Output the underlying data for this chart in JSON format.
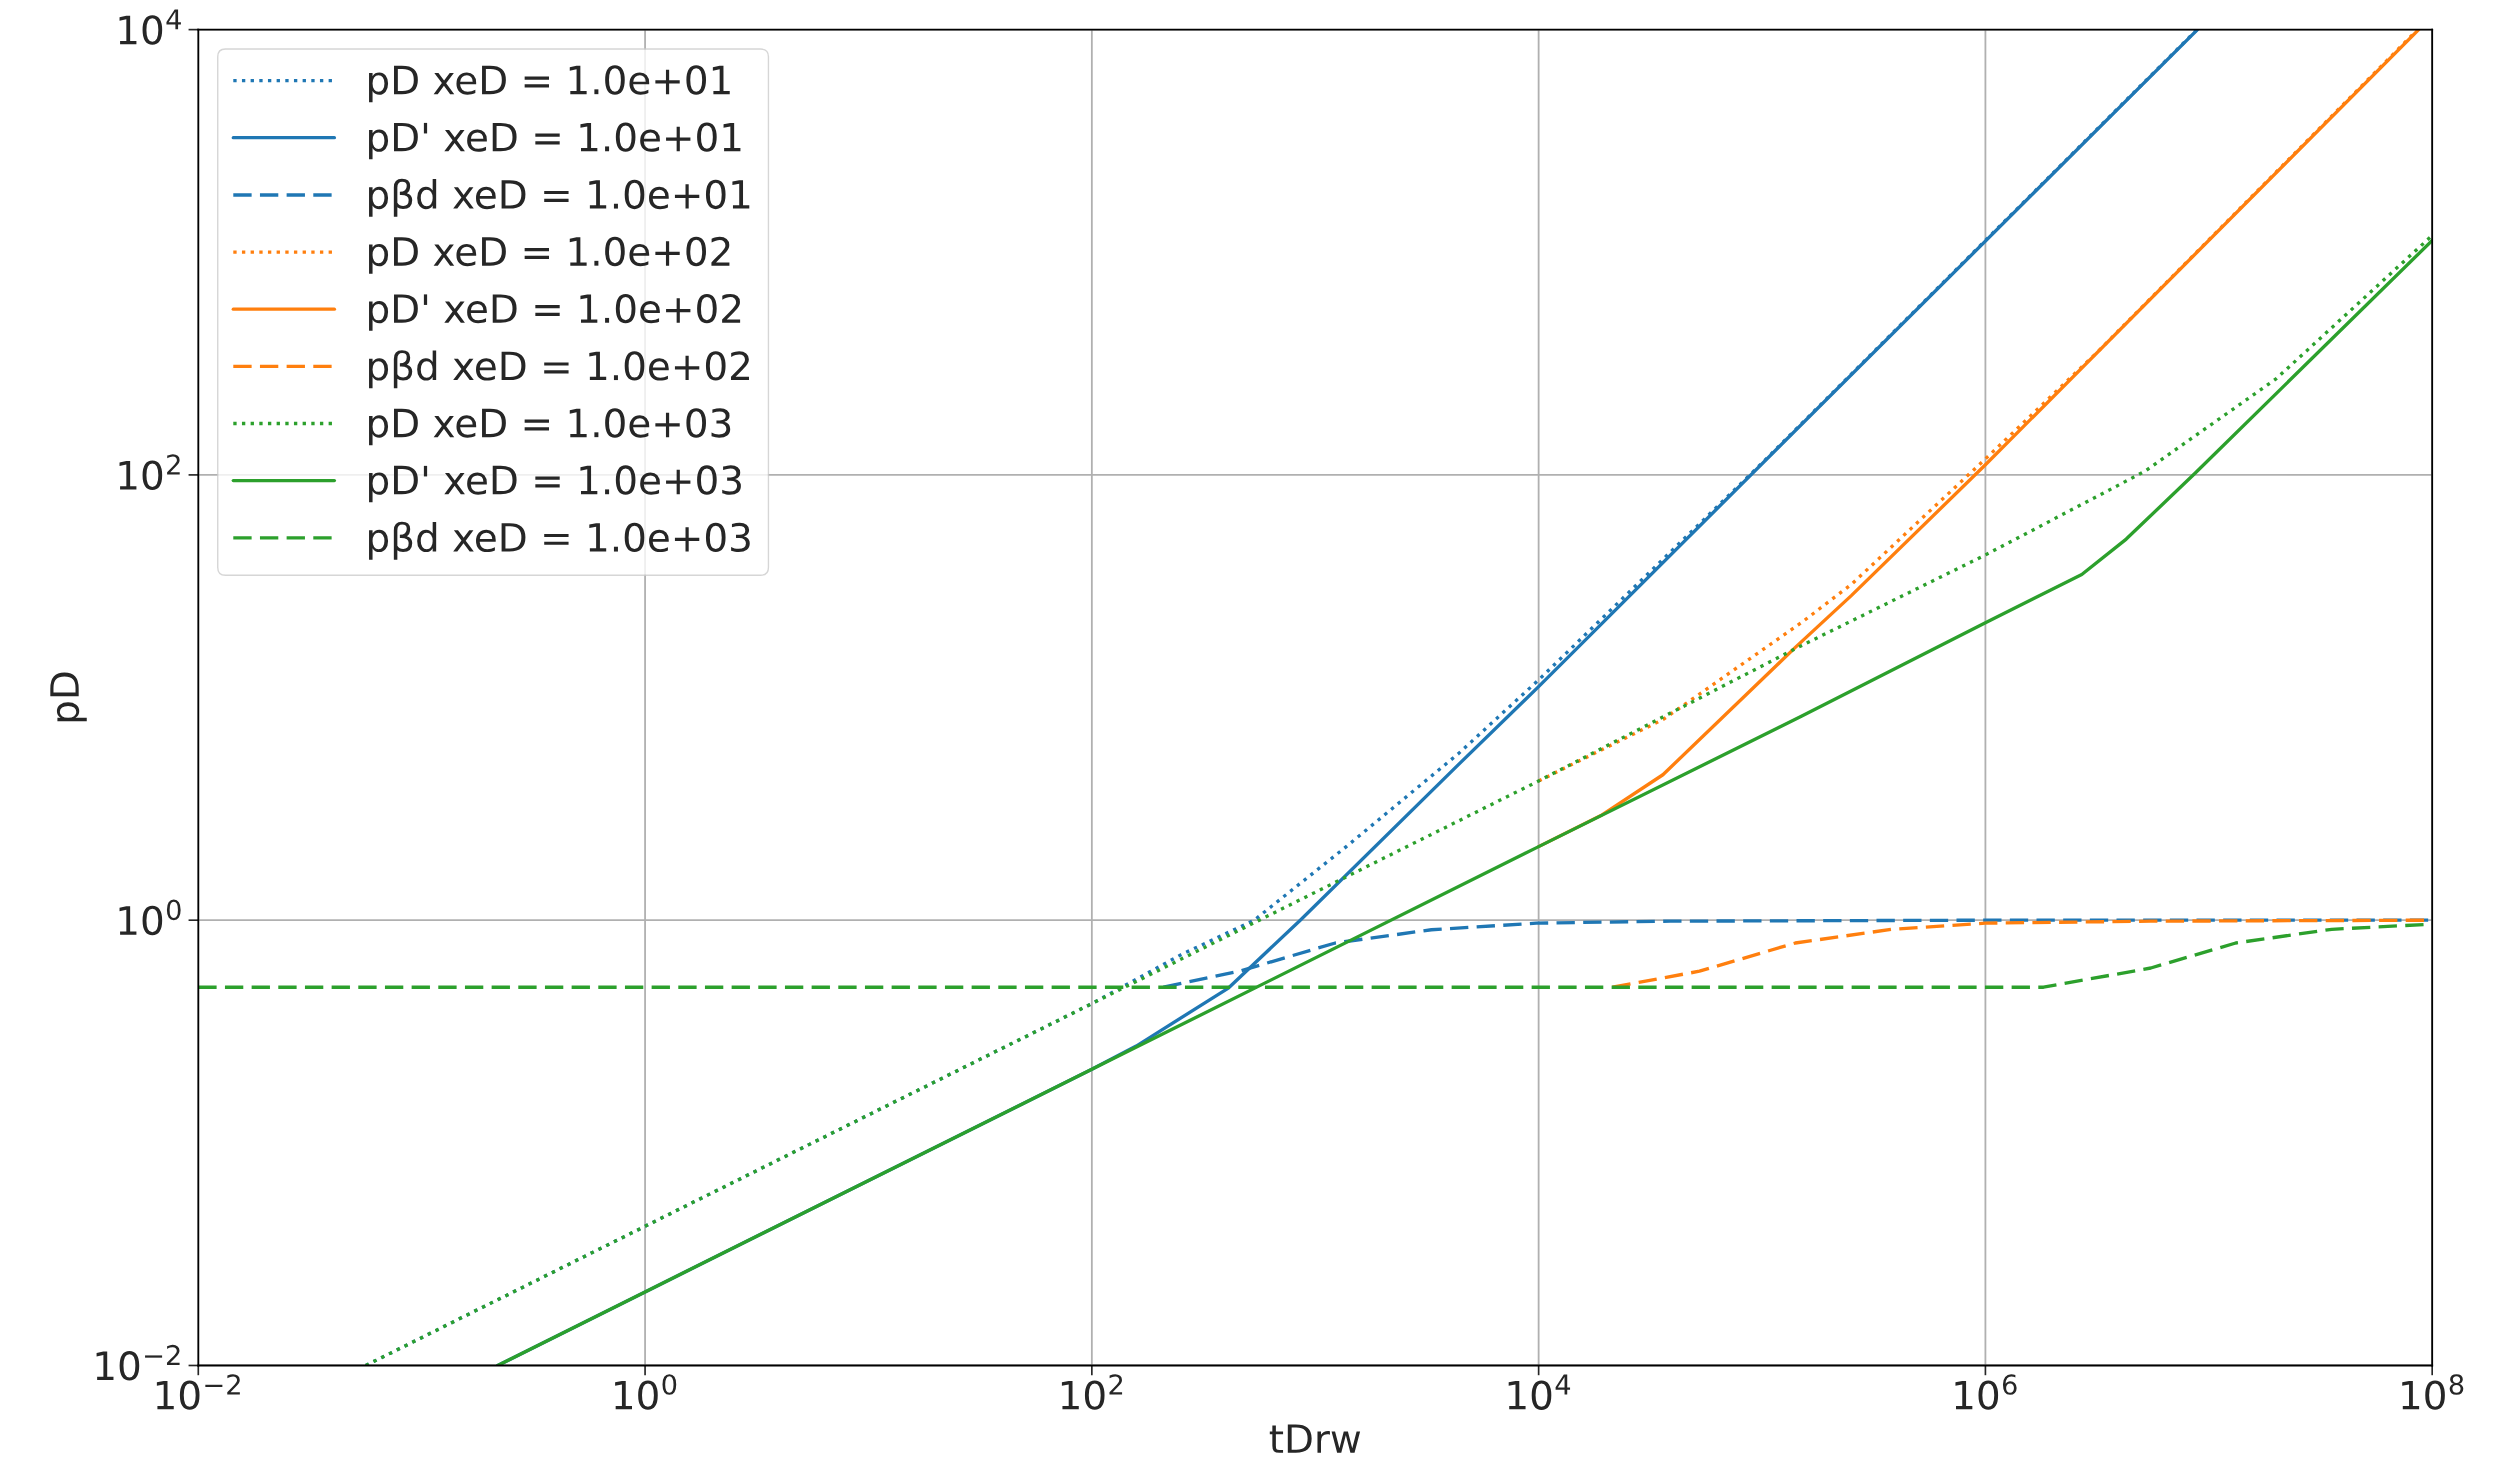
{
  "chart_data": {
    "type": "line",
    "xlabel": "tDrw",
    "ylabel": "pD",
    "log": "xy",
    "grid": true,
    "legend": "top left",
    "xlim": [
      0.01,
      100000000
    ],
    "ylim": [
      0.01,
      10000
    ],
    "xticks": [
      {
        "value": 0.01,
        "label": "10$^{−2}$"
      },
      {
        "value": 1,
        "label": "10$^{0}$"
      },
      {
        "value": 100,
        "label": "10$^{2}$"
      },
      {
        "value": 10000,
        "label": "10$^{4}$"
      },
      {
        "value": 1000000,
        "label": "10$^{6}$"
      },
      {
        "value": 100000000,
        "label": "10$^{8}$"
      }
    ],
    "yticks": [
      {
        "value": 0.01,
        "label": "10$^{−2}$"
      },
      {
        "value": 1,
        "label": "10$^{0}$"
      },
      {
        "value": 100,
        "label": "10$^{2}$"
      },
      {
        "value": 10000,
        "label": "10$^{4}$"
      }
    ],
    "series": [
      {
        "name": "pD xeD = 1.0e+01",
        "color": "#1f77b4",
        "line_style": "dotted",
        "x": [
          0.0562,
          1,
          100,
          251,
          533,
          1377,
          4375,
          10000,
          100000,
          8850000
        ],
        "values": [
          0.01,
          0.0422,
          0.422,
          0.7,
          1.0,
          2.14,
          5.6,
          12,
          113,
          10000
        ]
      },
      {
        "name": "pD' xeD = 1.0e+01",
        "color": "#1f77b4",
        "line_style": "solid",
        "x": [
          0.219,
          1,
          100,
          158,
          410,
          857,
          4375,
          10000,
          8900000
        ],
        "values": [
          0.01,
          0.0214,
          0.214,
          0.272,
          0.497,
          1.0,
          5.0,
          11.2,
          10000
        ]
      },
      {
        "name": "pβd xeD = 1.0e+01",
        "color": "#1f77b4",
        "line_style": "dashed",
        "x": [
          209,
          457,
          1230,
          3311,
          9772,
          38900,
          1000000,
          100000000
        ],
        "values": [
          0.5,
          0.59,
          0.79,
          0.906,
          0.97,
          0.99,
          1.0,
          1.0
        ]
      },
      {
        "name": "pD xeD = 1.0e+02",
        "color": "#ff7f0e",
        "line_style": "dotted",
        "x": [
          10000,
          36300,
          150000,
          251000,
          1000000,
          3160000,
          86000000
        ],
        "values": [
          4.22,
          8.0,
          21.7,
          32.2,
          118,
          355,
          10000
        ]
      },
      {
        "name": "pD' xeD = 1.0e+02",
        "color": "#ff7f0e",
        "line_style": "solid",
        "x": [
          10000,
          19000,
          36000,
          141000,
          251000,
          1000000,
          87000000
        ],
        "values": [
          2.14,
          2.95,
          4.5,
          16.8,
          28.7,
          111,
          10000
        ]
      },
      {
        "name": "pβd xeD = 1.0e+02",
        "color": "#ff7f0e",
        "line_style": "dashed",
        "x": [
          21400,
          52500,
          141000,
          380000,
          1000000,
          5500000,
          100000000
        ],
        "values": [
          0.5,
          0.59,
          0.79,
          0.91,
          0.97,
          0.99,
          1.0
        ]
      },
      {
        "name": "pD xeD = 1.0e+03",
        "color": "#2ca02c",
        "line_style": "dotted",
        "x": [
          0.0562,
          1,
          100,
          10000,
          150000,
          1000000,
          5190000,
          20000000,
          100000000
        ],
        "values": [
          0.01,
          0.0422,
          0.422,
          4.22,
          17.1,
          43.7,
          104,
          270,
          1190
        ]
      },
      {
        "name": "pD' xeD = 1.0e+03",
        "color": "#2ca02c",
        "line_style": "solid",
        "x": [
          0.219,
          1,
          100,
          10000,
          150000,
          1000000,
          2700000,
          4270000,
          8700000,
          100000000
        ],
        "values": [
          0.01,
          0.0214,
          0.214,
          2.14,
          8.24,
          21.7,
          35.7,
          51.5,
          102,
          1130
        ]
      },
      {
        "name": "pβd xeD = 1.0e+03",
        "color": "#2ca02c",
        "line_style": "dashed",
        "x": [
          0.01,
          1820000,
          5500000,
          13200000,
          35500000,
          100000000
        ],
        "values": [
          0.5,
          0.5,
          0.61,
          0.79,
          0.91,
          0.96
        ]
      }
    ]
  }
}
